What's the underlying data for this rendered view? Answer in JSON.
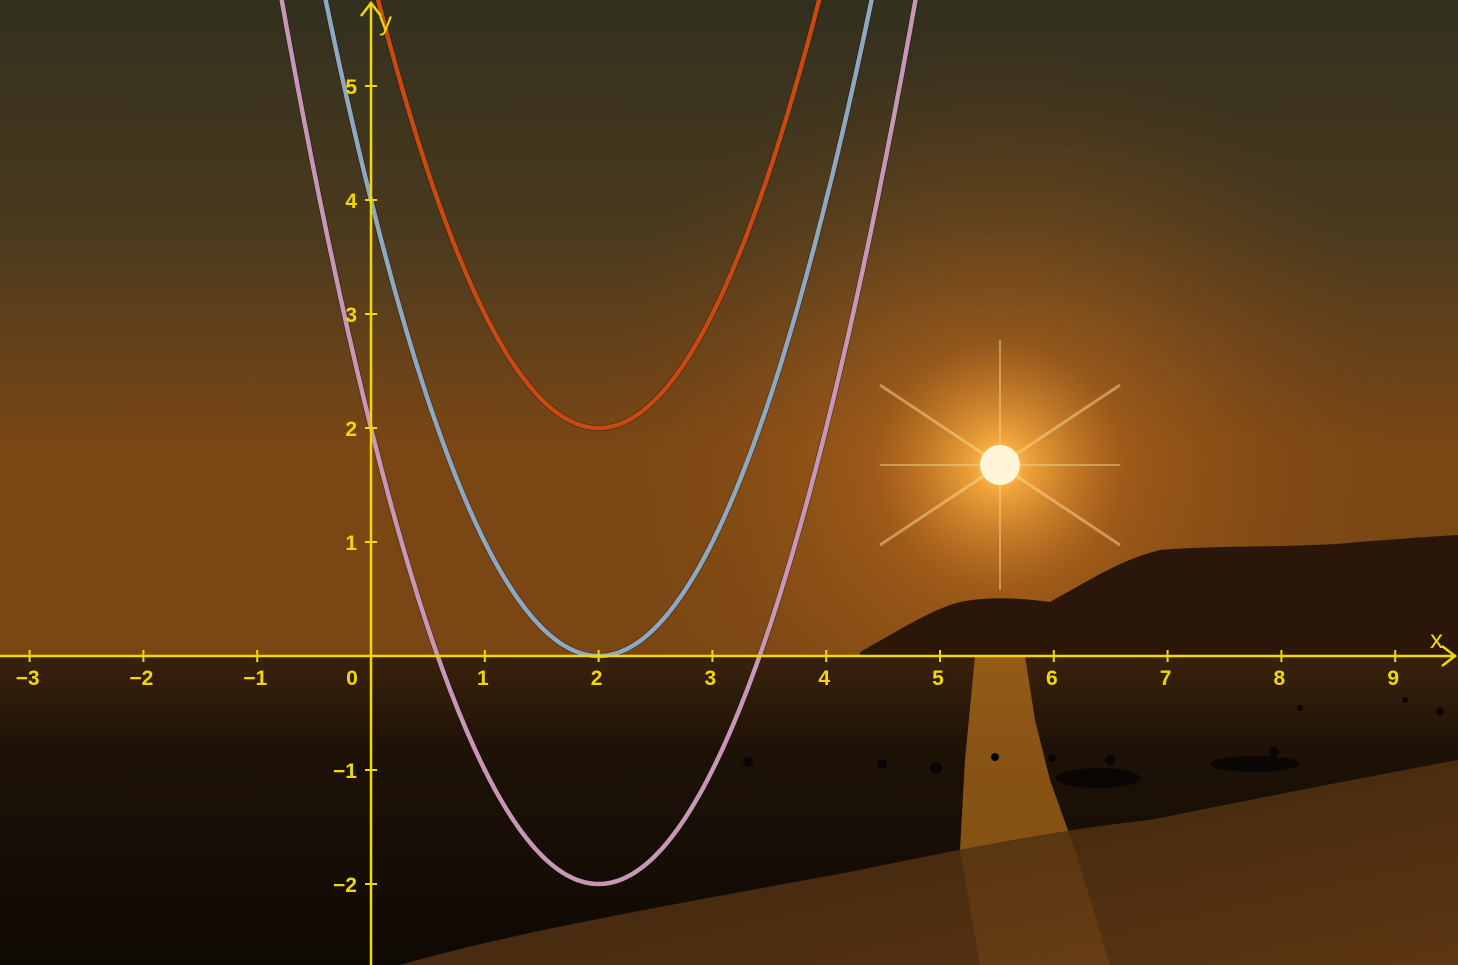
{
  "colors": {
    "axis": "#f2d800",
    "sky_top": "#35301f",
    "sky_glow": "#f0a03c",
    "sea": "#140c04",
    "hills": "#2a170a"
  },
  "chart_data": {
    "type": "line",
    "xlabel": "x",
    "ylabel": "y",
    "xlim": [
      -3.2,
      9.5
    ],
    "ylim": [
      -2.7,
      5.7
    ],
    "x_ticks": [
      -3,
      -2,
      -1,
      0,
      1,
      2,
      3,
      4,
      5,
      6,
      7,
      8,
      9
    ],
    "x_tick_labels": [
      "−3",
      "−2",
      "−1",
      "0",
      "1",
      "2",
      "3",
      "4",
      "5",
      "6",
      "7",
      "8",
      "9"
    ],
    "y_ticks": [
      -2,
      -1,
      1,
      2,
      3,
      4,
      5
    ],
    "y_tick_labels": [
      "−2",
      "−1",
      "1",
      "2",
      "3",
      "4",
      "5"
    ],
    "grid": false,
    "background": "photo of a sunset over the sea",
    "series": [
      {
        "color": "#c84a10",
        "vertex": [
          2,
          2
        ],
        "a": 1,
        "x": [
          0.2,
          0.5,
          1,
          1.5,
          2,
          2.5,
          3,
          3.5,
          3.9
        ],
        "y": [
          5.24,
          4.25,
          3,
          2.25,
          2,
          2.25,
          3,
          4.25,
          5.61
        ]
      },
      {
        "color": "#8fa8c0",
        "vertex": [
          2,
          0
        ],
        "a": 1,
        "x": [
          -0.3,
          0,
          0.5,
          1,
          1.5,
          2,
          2.5,
          3,
          3.5,
          4,
          4.4
        ],
        "y": [
          5.29,
          4,
          2.25,
          1,
          0.25,
          0,
          0.25,
          1,
          2.25,
          4,
          5.76
        ]
      },
      {
        "color": "#c797b5",
        "vertex": [
          2,
          -2
        ],
        "a": 1,
        "x": [
          -0.7,
          0,
          0.5,
          1,
          1.5,
          2,
          2.5,
          3,
          3.5,
          4,
          4.7
        ],
        "y": [
          5.29,
          2,
          0.25,
          -1,
          -1.75,
          -2,
          -1.75,
          -1,
          0.25,
          2,
          5.29
        ]
      }
    ]
  }
}
